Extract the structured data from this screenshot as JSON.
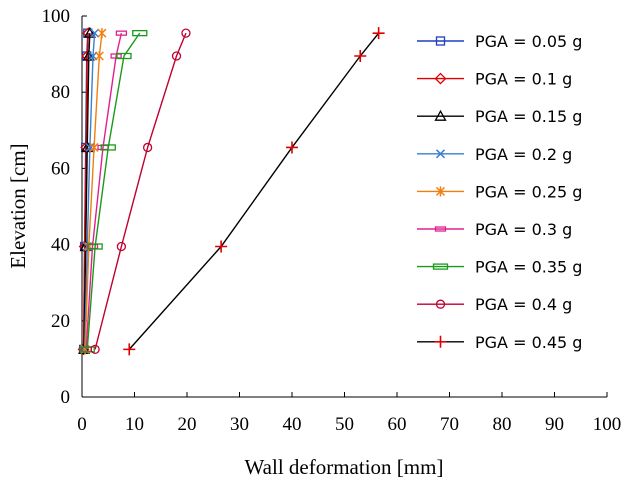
{
  "chart_data": {
    "type": "line",
    "title": "",
    "xlabel": "Wall deformation [mm]",
    "ylabel": "Elevation [cm]",
    "xlim": [
      0,
      100
    ],
    "ylim": [
      0,
      100
    ],
    "xticks": [
      0,
      10,
      20,
      30,
      40,
      50,
      60,
      70,
      80,
      90,
      100
    ],
    "yticks": [
      0,
      20,
      40,
      60,
      80,
      100
    ],
    "grid": false,
    "legend": "right",
    "series": [
      {
        "name": "PGA = 0.05 g",
        "color": "#1f3fbf",
        "marker": "square",
        "x": [
          0.3,
          0.5,
          0.7,
          0.9,
          1.1
        ],
        "y": [
          12.5,
          39.5,
          65.5,
          89.5,
          95.5
        ]
      },
      {
        "name": "PGA = 0.1 g",
        "color": "#e00000",
        "marker": "diamond",
        "x": [
          0.3,
          0.5,
          0.8,
          1.0,
          1.2
        ],
        "y": [
          12.5,
          39.5,
          65.5,
          89.5,
          95.5
        ]
      },
      {
        "name": "PGA = 0.15 g",
        "color": "#000000",
        "marker": "triangle",
        "x": [
          0.4,
          0.7,
          1.0,
          1.3,
          1.5
        ],
        "y": [
          12.5,
          39.5,
          65.5,
          89.5,
          95.5
        ]
      },
      {
        "name": "PGA = 0.2 g",
        "color": "#3a7fd0",
        "marker": "x",
        "x": [
          0.5,
          1.0,
          1.5,
          2.1,
          2.4
        ],
        "y": [
          12.5,
          39.5,
          65.5,
          89.5,
          95.5
        ]
      },
      {
        "name": "PGA = 0.25 g",
        "color": "#f07f10",
        "marker": "star",
        "x": [
          0.6,
          1.3,
          2.3,
          3.3,
          3.8
        ],
        "y": [
          12.5,
          39.5,
          65.5,
          89.5,
          95.5
        ]
      },
      {
        "name": "PGA = 0.3 g",
        "color": "#e0208f",
        "marker": "dash",
        "x": [
          0.8,
          2.0,
          4.0,
          6.5,
          7.5
        ],
        "y": [
          12.5,
          39.5,
          65.5,
          89.5,
          95.5
        ]
      },
      {
        "name": "PGA = 0.35 g",
        "color": "#1a9a1a",
        "marker": "rect",
        "x": [
          1.0,
          2.5,
          5.0,
          8.0,
          11.0
        ],
        "y": [
          12.5,
          39.5,
          65.5,
          89.5,
          95.5
        ]
      },
      {
        "name": "PGA = 0.4 g",
        "color": "#c00030",
        "marker": "circle",
        "x": [
          2.5,
          7.5,
          12.5,
          18.0,
          19.8
        ],
        "y": [
          12.5,
          39.5,
          65.5,
          89.5,
          95.5
        ]
      },
      {
        "name": "PGA = 0.45 g",
        "color": "#000000",
        "marker": "plus",
        "marker_color": "#e00000",
        "x": [
          9.0,
          26.5,
          40.0,
          53.0,
          56.5
        ],
        "y": [
          12.5,
          39.5,
          65.5,
          89.5,
          95.5
        ]
      }
    ]
  }
}
